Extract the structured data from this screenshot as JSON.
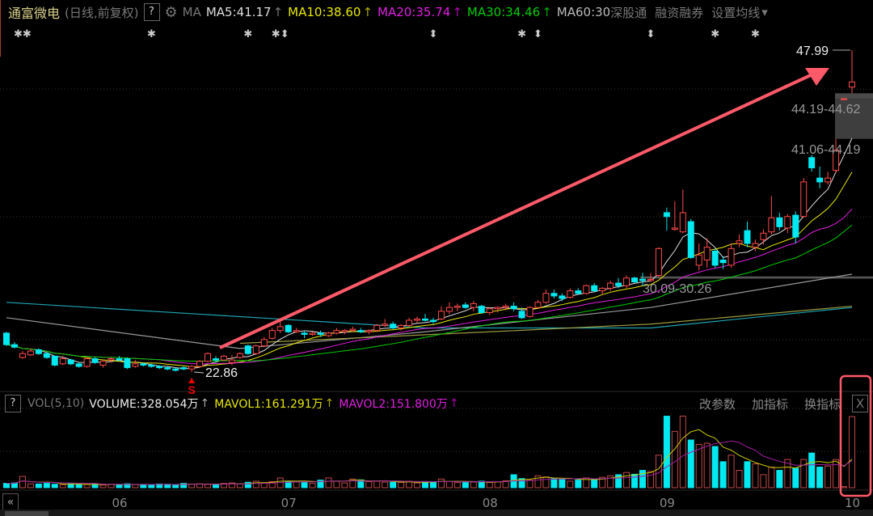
{
  "header": {
    "stock_name": "通富微电",
    "period": "(日线,前复权)",
    "help": "?",
    "ma_label": "MA",
    "ma5": "MA5:41.17",
    "ma10": "MA10:38.60",
    "ma20": "MA20:35.74",
    "ma30": "MA30:34.46",
    "ma60": "MA60:30",
    "links": [
      "深股通",
      "融资融券",
      "设置均线"
    ],
    "arrow_glyph": "↑",
    "dropdown_glyph": "▾"
  },
  "volume_header": {
    "help": "?",
    "name": "VOL(5,10)",
    "volume": "VOLUME:328.054万",
    "mavol1": "MAVOL1:161.291万",
    "mavol2": "MAVOL2:151.800万",
    "buttons": [
      "改参数",
      "加指标",
      "换指标"
    ],
    "close": "X"
  },
  "annotations": {
    "high_label": "47.99",
    "low_label": "22.86",
    "gap1": "44.19-44.62",
    "gap2": "41.06-44.19",
    "gap3": "30.09-30.26",
    "signal": "S"
  },
  "nav": {
    "back": "«"
  },
  "colors": {
    "up": "#ff4a4a",
    "down": "#00e8f0",
    "ma5": "#dddddd",
    "ma10": "#e8e800",
    "ma20": "#e020e0",
    "ma30": "#00cc00",
    "ma60": "#9a9a9a",
    "ma_long": "#1fa3b0",
    "highlight": "#ff5a6a"
  },
  "chart_data": {
    "type": "candlestick",
    "x_ticks": [
      {
        "label": "06",
        "index": 14
      },
      {
        "label": "07",
        "index": 35
      },
      {
        "label": "08",
        "index": 60
      },
      {
        "label": "09",
        "index": 82
      },
      {
        "label": "10",
        "index": 105
      }
    ],
    "ylim": [
      22,
      50
    ],
    "candles": [
      [
        25.9,
        26.0,
        24.9,
        25.0
      ],
      [
        25.0,
        25.2,
        24.7,
        24.8
      ],
      [
        24.0,
        24.5,
        23.9,
        24.3
      ],
      [
        24.2,
        24.7,
        24.1,
        24.5
      ],
      [
        24.6,
        24.7,
        24.2,
        24.3
      ],
      [
        24.3,
        24.4,
        23.9,
        24.0
      ],
      [
        24.1,
        24.1,
        23.3,
        23.4
      ],
      [
        23.5,
        24.1,
        23.4,
        23.9
      ],
      [
        23.8,
        23.9,
        23.4,
        23.5
      ],
      [
        23.5,
        23.6,
        23.2,
        23.3
      ],
      [
        23.3,
        24.0,
        23.2,
        23.9
      ],
      [
        23.9,
        24.0,
        23.5,
        23.6
      ],
      [
        23.4,
        23.8,
        23.2,
        23.7
      ],
      [
        23.8,
        24.0,
        23.6,
        23.9
      ],
      [
        23.9,
        24.1,
        23.7,
        23.8
      ],
      [
        23.9,
        24.0,
        23.1,
        23.2
      ],
      [
        23.3,
        23.8,
        23.2,
        23.5
      ],
      [
        23.5,
        23.6,
        23.3,
        23.4
      ],
      [
        23.4,
        23.5,
        23.2,
        23.3
      ],
      [
        23.3,
        23.4,
        23.1,
        23.2
      ],
      [
        23.2,
        23.3,
        23.0,
        23.1
      ],
      [
        23.1,
        23.2,
        22.9,
        23.0
      ],
      [
        23.2,
        23.3,
        23.0,
        23.1
      ],
      [
        23.1,
        23.4,
        22.86,
        23.3
      ],
      [
        23.3,
        23.8,
        23.2,
        23.7
      ],
      [
        23.7,
        24.4,
        23.6,
        24.3
      ],
      [
        23.9,
        24.1,
        23.6,
        23.8
      ],
      [
        23.8,
        24.2,
        23.7,
        24.1
      ],
      [
        23.6,
        24.2,
        23.4,
        23.8
      ],
      [
        24.0,
        24.4,
        23.9,
        24.3
      ],
      [
        24.9,
        25.0,
        24.2,
        24.3
      ],
      [
        24.3,
        25.0,
        24.2,
        24.9
      ],
      [
        24.9,
        25.6,
        24.8,
        25.4
      ],
      [
        25.5,
        26.3,
        25.4,
        26.1
      ],
      [
        26.1,
        27.0,
        25.9,
        26.4
      ],
      [
        26.5,
        26.6,
        25.9,
        26.0
      ],
      [
        26.0,
        26.3,
        25.9,
        26.1
      ],
      [
        25.9,
        26.1,
        25.5,
        25.8
      ],
      [
        25.8,
        26.0,
        25.7,
        25.9
      ],
      [
        25.9,
        26.1,
        25.6,
        25.8
      ],
      [
        25.7,
        26.0,
        25.6,
        25.9
      ],
      [
        25.9,
        26.3,
        25.8,
        26.1
      ],
      [
        26.0,
        26.2,
        25.8,
        26.1
      ],
      [
        26.1,
        26.4,
        26.0,
        26.2
      ],
      [
        26.1,
        26.3,
        25.9,
        26.0
      ],
      [
        26.0,
        26.2,
        25.8,
        26.1
      ],
      [
        26.1,
        26.6,
        26.0,
        26.5
      ],
      [
        26.5,
        27.0,
        26.4,
        26.6
      ],
      [
        26.6,
        26.8,
        26.2,
        26.3
      ],
      [
        26.3,
        26.6,
        26.1,
        26.5
      ],
      [
        26.5,
        27.1,
        26.4,
        26.9
      ],
      [
        26.9,
        27.2,
        26.7,
        27.0
      ],
      [
        27.0,
        27.4,
        26.8,
        26.9
      ],
      [
        26.9,
        27.1,
        26.6,
        26.8
      ],
      [
        27.0,
        28.0,
        26.9,
        27.6
      ],
      [
        27.6,
        28.3,
        27.4,
        27.9
      ],
      [
        27.9,
        28.2,
        27.6,
        28.0
      ],
      [
        28.1,
        28.3,
        27.8,
        27.9
      ],
      [
        27.9,
        28.4,
        27.6,
        28.2
      ],
      [
        28.0,
        28.1,
        27.4,
        27.5
      ],
      [
        27.5,
        27.9,
        27.3,
        27.8
      ],
      [
        27.8,
        28.0,
        27.5,
        27.9
      ],
      [
        27.9,
        28.2,
        27.7,
        28.0
      ],
      [
        28.0,
        28.3,
        27.6,
        27.8
      ],
      [
        27.6,
        27.9,
        27.0,
        27.1
      ],
      [
        27.2,
        28.0,
        27.1,
        27.9
      ],
      [
        27.9,
        28.5,
        27.8,
        28.3
      ],
      [
        28.3,
        29.3,
        28.2,
        29.0
      ],
      [
        29.0,
        29.3,
        28.6,
        28.8
      ],
      [
        28.8,
        29.0,
        28.4,
        28.6
      ],
      [
        28.7,
        29.4,
        28.6,
        29.2
      ],
      [
        29.2,
        29.4,
        28.9,
        29.0
      ],
      [
        29.0,
        29.7,
        28.9,
        29.6
      ],
      [
        29.6,
        29.8,
        29.1,
        29.2
      ],
      [
        29.2,
        29.5,
        28.9,
        29.4
      ],
      [
        29.4,
        30.0,
        29.2,
        29.8
      ],
      [
        29.8,
        30.2,
        29.4,
        29.6
      ],
      [
        29.6,
        30.4,
        29.4,
        30.2
      ],
      [
        30.2,
        30.3,
        29.8,
        29.9
      ],
      [
        30.1,
        30.6,
        29.6,
        30.0
      ],
      [
        30.0,
        30.6,
        29.9,
        30.09
      ],
      [
        30.4,
        32.6,
        30.26,
        32.5
      ],
      [
        35.3,
        35.7,
        33.9,
        35.0
      ],
      [
        34.0,
        36.2,
        33.9,
        34.1
      ],
      [
        33.8,
        37.1,
        33.7,
        35.3
      ],
      [
        34.6,
        34.8,
        31.7,
        31.8
      ],
      [
        31.2,
        32.9,
        30.8,
        32.0
      ],
      [
        31.6,
        33.3,
        31.0,
        32.6
      ],
      [
        32.3,
        32.5,
        31.0,
        31.2
      ],
      [
        31.6,
        31.9,
        30.9,
        31.4
      ],
      [
        31.2,
        32.9,
        31.0,
        32.5
      ],
      [
        32.9,
        33.6,
        32.6,
        33.1
      ],
      [
        33.9,
        34.6,
        32.6,
        32.9
      ],
      [
        32.6,
        33.2,
        32.3,
        32.9
      ],
      [
        33.2,
        34.0,
        32.8,
        33.7
      ],
      [
        33.8,
        36.6,
        33.6,
        34.9
      ],
      [
        34.9,
        35.3,
        33.9,
        34.2
      ],
      [
        34.1,
        35.2,
        33.7,
        35.0
      ],
      [
        35.1,
        35.4,
        32.9,
        33.4
      ],
      [
        35.0,
        38.0,
        34.9,
        37.7
      ],
      [
        39.6,
        39.8,
        38.5,
        38.8
      ],
      [
        38.0,
        38.9,
        37.2,
        37.7
      ],
      [
        37.7,
        38.5,
        37.5,
        38.0
      ],
      [
        38.6,
        41.06,
        38.4,
        40.17
      ],
      [
        44.19,
        44.19,
        44.19,
        44.19
      ],
      [
        45.1,
        47.99,
        44.62,
        45.5
      ]
    ],
    "volumes": [
      20,
      22,
      52,
      18,
      17,
      20,
      16,
      14,
      18,
      15,
      14,
      17,
      12,
      16,
      15,
      18,
      14,
      13,
      15,
      17,
      16,
      14,
      20,
      16,
      18,
      15,
      14,
      20,
      22,
      17,
      25,
      30,
      22,
      28,
      45,
      30,
      26,
      24,
      20,
      35,
      45,
      30,
      22,
      40,
      36,
      28,
      30,
      26,
      25,
      24,
      30,
      22,
      26,
      28,
      40,
      28,
      24,
      25,
      26,
      30,
      24,
      28,
      32,
      60,
      42,
      35,
      55,
      50,
      42,
      38,
      30,
      35,
      45,
      40,
      48,
      55,
      60,
      70,
      62,
      80,
      75,
      150,
      330,
      260,
      330,
      220,
      200,
      205,
      190,
      120,
      150,
      80,
      120,
      110,
      60,
      95,
      80,
      130,
      90,
      130,
      160,
      95,
      100,
      130,
      5,
      328.054
    ],
    "volume_unit": "万",
    "ma_periods": [
      5,
      10,
      20,
      30
    ],
    "ma60_points": [
      [
        0,
        27.1
      ],
      [
        29,
        24.7
      ],
      [
        52,
        26.0
      ],
      [
        80,
        27.9
      ],
      [
        105,
        30.5
      ]
    ],
    "ma_long_points": [
      [
        0,
        28.3
      ],
      [
        52,
        26.3
      ],
      [
        80,
        26.3
      ],
      [
        105,
        27.9
      ]
    ],
    "ma_olive_points": [
      [
        29,
        25.1
      ],
      [
        60,
        26.0
      ],
      [
        80,
        26.6
      ],
      [
        105,
        28.0
      ]
    ],
    "gaps": [
      [
        44.19,
        44.62
      ],
      [
        41.06,
        44.19
      ],
      [
        30.09,
        30.26
      ]
    ],
    "markers": [
      {
        "index": 2,
        "glyph": "✱✱"
      },
      {
        "index": 18,
        "glyph": "✱"
      },
      {
        "index": 30,
        "glyph": "✱"
      },
      {
        "index": 34,
        "glyph": "✱⬍"
      },
      {
        "index": 53,
        "glyph": "⬍"
      },
      {
        "index": 64,
        "glyph": "✱"
      },
      {
        "index": 66,
        "glyph": "⬍"
      },
      {
        "index": 80,
        "glyph": "⬍"
      },
      {
        "index": 88,
        "glyph": "✱"
      },
      {
        "index": 93,
        "glyph": "✱"
      }
    ]
  }
}
